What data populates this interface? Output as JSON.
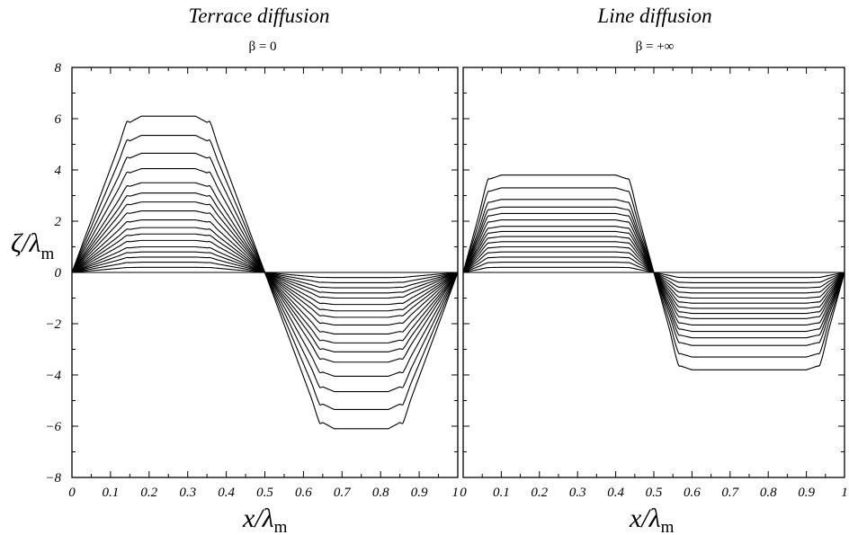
{
  "chart_data": [
    {
      "type": "line",
      "title": "Terrace diffusion",
      "subtitle": "β = 0",
      "ylabel": "ζ/λ",
      "ylabel_sub": "m",
      "xlabel": "x/λ",
      "xlabel_sub": "m",
      "xlim": [
        0,
        1
      ],
      "ylim": [
        -8,
        8
      ],
      "x_ticks": [
        "0",
        "0.1",
        "0.2",
        "0.3",
        "0.4",
        "0.5",
        "0.6",
        "0.7",
        "0.8",
        "0.9"
      ],
      "y_ticks": [
        "8",
        "6",
        "4",
        "2",
        "0",
        "−2",
        "−4",
        "−6",
        "−8"
      ],
      "grid": false,
      "profile": {
        "plateau_start": 0.15,
        "plateau_end": 0.35,
        "edge_rounding": 0.03
      },
      "series": [
        {
          "plateau": 0.2
        },
        {
          "plateau": 0.4
        },
        {
          "plateau": 0.6
        },
        {
          "plateau": 0.8
        },
        {
          "plateau": 1.0
        },
        {
          "plateau": 1.25
        },
        {
          "plateau": 1.5
        },
        {
          "plateau": 1.75
        },
        {
          "plateau": 2.05
        },
        {
          "plateau": 2.4
        },
        {
          "plateau": 2.75
        },
        {
          "plateau": 3.1
        },
        {
          "plateau": 3.5
        },
        {
          "plateau": 4.05
        },
        {
          "plateau": 4.65
        },
        {
          "plateau": 5.35
        },
        {
          "plateau": 6.1
        }
      ]
    },
    {
      "type": "line",
      "title": "Line diffusion",
      "subtitle": "β = +∞",
      "ylabel": "",
      "xlabel": "x/λ",
      "xlabel_sub": "m",
      "xlim": [
        0,
        1
      ],
      "ylim": [
        -8,
        8
      ],
      "x_ticks": [
        "0",
        "0.1",
        "0.2",
        "0.3",
        "0.4",
        "0.5",
        "0.6",
        "0.7",
        "0.8",
        "0.9",
        "1"
      ],
      "y_ticks": [],
      "left_edge_tick_prefix": "1",
      "grid": false,
      "profile": {
        "plateau_start": 0.07,
        "plateau_end": 0.43,
        "edge_rounding": 0.03
      },
      "series": [
        {
          "plateau": 0.2
        },
        {
          "plateau": 0.4
        },
        {
          "plateau": 0.6
        },
        {
          "plateau": 0.8
        },
        {
          "plateau": 1.0
        },
        {
          "plateau": 1.2
        },
        {
          "plateau": 1.4
        },
        {
          "plateau": 1.6
        },
        {
          "plateau": 1.8
        },
        {
          "plateau": 2.05
        },
        {
          "plateau": 2.3
        },
        {
          "plateau": 2.55
        },
        {
          "plateau": 2.85
        },
        {
          "plateau": 3.3
        },
        {
          "plateau": 3.8
        }
      ]
    }
  ]
}
